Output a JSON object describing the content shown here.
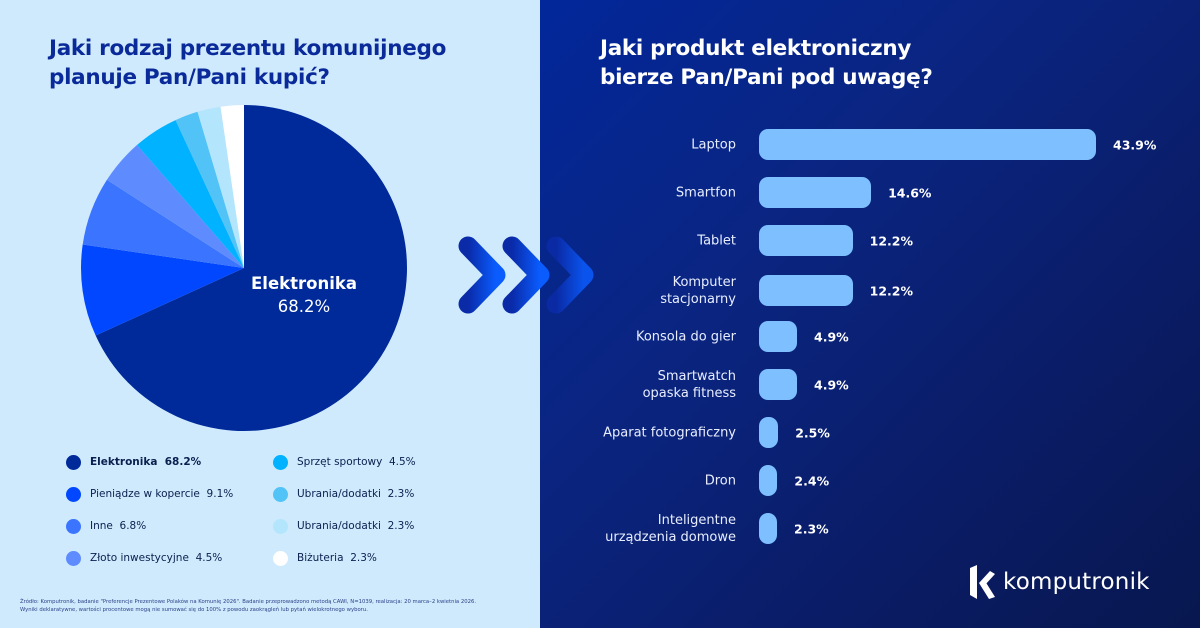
{
  "left": {
    "title_line1": "Jaki rodzaj prezentu komunijnego",
    "title_line2": "planuje Pan/Pani kupić?",
    "pie_label_name": "Elektronika",
    "pie_label_value": "68.2%",
    "legend": [
      {
        "label": "Elektronika  68.2%",
        "color": "#002a9a",
        "bold": true
      },
      {
        "label": "Pieniądze w kopercie  9.1%",
        "color": "#0047ff",
        "bold": false
      },
      {
        "label": "Inne  6.8%",
        "color": "#3b74ff",
        "bold": false
      },
      {
        "label": "Złoto inwestycyjne  4.5%",
        "color": "#5e8cff",
        "bold": false
      },
      {
        "label": "Sprzęt sportowy  4.5%",
        "color": "#00b2ff",
        "bold": false
      },
      {
        "label": "Ubrania/dodatki  2.3%",
        "color": "#52c3f7",
        "bold": false
      },
      {
        "label": "Ubrania/dodatki  2.3%",
        "color": "#b3e5fc",
        "bold": false
      },
      {
        "label": "Biżuteria  2.3%",
        "color": "#ffffff",
        "bold": false
      }
    ],
    "source_note": "Źródło: Komputronik, badanie \"Preferencje Prezentowe Polaków na Komunię 2026\". Badanie przeprowadzono metodą CAWI, N=1039, realizacja: 20 marca–2 kwietnia 2026. Wyniki deklaratywne, wartości procentowe mogą nie sumować się do 100% z powodu zaokrągleń lub pytań wielokrotnego wyboru."
  },
  "right": {
    "title_line1": "Jaki produkt elektroniczny",
    "title_line2": "bierze Pan/Pani pod uwagę?"
  },
  "brand": {
    "logo_text": "komputronik",
    "logo_icon": "komputronik-k-logo-icon"
  },
  "colors": {
    "left_bg": "#cfeafd",
    "right_bg_start": "#02279a",
    "right_bg_end": "#08174f",
    "bar": "#7ec0ff",
    "title_dark": "#0a2a9a"
  },
  "chart_data": [
    {
      "type": "pie",
      "title": "Jaki rodzaj prezentu komunijnego planuje Pan/Pani kupić?",
      "labels": [
        "Elektronika",
        "Pieniądze w kopercie",
        "Inne",
        "Złoto inwestycyjne",
        "Sprzęt sportowy",
        "Ubrania/dodatki",
        "Ubrania/dodatki",
        "Biżuteria"
      ],
      "values": [
        68.2,
        9.1,
        6.8,
        4.5,
        4.5,
        2.3,
        2.3,
        2.3
      ],
      "colors": [
        "#002a9a",
        "#0047ff",
        "#3b74ff",
        "#5e8cff",
        "#00b2ff",
        "#52c3f7",
        "#b3e5fc",
        "#ffffff"
      ],
      "start": "12 o'clock, clockwise",
      "legend_position": "bottom",
      "annotation": "Elektronika 68.2%"
    },
    {
      "type": "bar",
      "orientation": "horizontal",
      "title": "Jaki produkt elektroniczny bierze Pan/Pani pod uwagę?",
      "categories": [
        "Laptop",
        "Smartfon",
        "Tablet",
        "Komputer\nstacjonarny",
        "Konsola do gier",
        "Smartwatch\nopaska fitness",
        "Aparat fotograficzny",
        "Dron",
        "Inteligentne\nurządzenia domowe"
      ],
      "values": [
        43.9,
        14.6,
        12.2,
        12.2,
        4.9,
        4.9,
        2.5,
        2.4,
        2.3
      ],
      "value_labels": [
        "43.9%",
        "14.6%",
        "12.2%",
        "12.2%",
        "4.9%",
        "4.9%",
        "2.5%",
        "2.4%",
        "2.3%"
      ],
      "xlim": [
        0,
        43.9
      ],
      "unit": "%",
      "grid": false,
      "legend": "none"
    }
  ]
}
